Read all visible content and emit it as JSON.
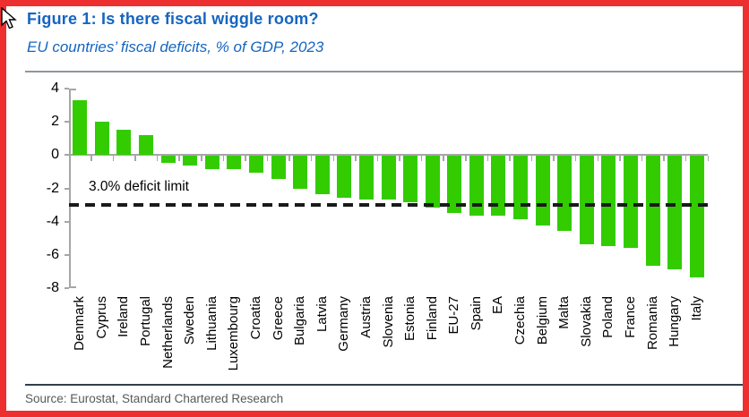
{
  "header": {
    "title": "Figure 1: Is there fiscal wiggle room?",
    "subtitle": "EU countries’ fiscal deficits, % of GDP, 2023"
  },
  "chart_data": {
    "type": "bar",
    "title": "Figure 1: Is there fiscal wiggle room?",
    "subtitle": "EU countries’ fiscal deficits, % of GDP, 2023",
    "xlabel": "",
    "ylabel": "% of GDP",
    "categories": [
      "Denmark",
      "Cyprus",
      "Ireland",
      "Portugal",
      "Netherlands",
      "Sweden",
      "Lithuania",
      "Luxembourg",
      "Croatia",
      "Greece",
      "Bulgaria",
      "Latvia",
      "Germany",
      "Austria",
      "Slovenia",
      "Estonia",
      "Finland",
      "EU-27",
      "Spain",
      "EA",
      "Czechia",
      "Belgium",
      "Malta",
      "Slovakia",
      "Poland",
      "France",
      "Romania",
      "Hungary",
      "Italy"
    ],
    "values": [
      3.3,
      2.0,
      1.5,
      1.2,
      -0.4,
      -0.6,
      -0.8,
      -0.8,
      -1.0,
      -1.4,
      -2.0,
      -2.3,
      -2.5,
      -2.6,
      -2.6,
      -2.8,
      -3.1,
      -3.4,
      -3.6,
      -3.6,
      -3.8,
      -4.2,
      -4.5,
      -5.3,
      -5.4,
      -5.5,
      -6.6,
      -6.8,
      -7.3
    ],
    "ylim": [
      -8,
      4
    ],
    "yticks": [
      4,
      2,
      0,
      -2,
      -4,
      -6,
      -8
    ],
    "grid": false,
    "legend": "none",
    "bar_color": "#33cc00",
    "axis_color": "#a6a6a6",
    "reference_line": {
      "value": -3.0,
      "label": "3.0% deficit limit",
      "style": "dashed",
      "color": "#1a1a1a"
    }
  },
  "footer": {
    "source": "Source: Eurostat, Standard Chartered Research"
  },
  "icons": {
    "cursor": "mouse-cursor"
  },
  "colors": {
    "title_blue": "#1565c0",
    "border_red": "#ee2f2f",
    "bar_green": "#33cc00",
    "axis_gray": "#a6a6a6"
  }
}
